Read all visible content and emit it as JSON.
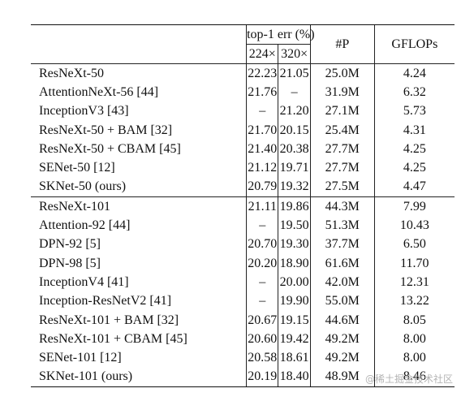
{
  "table": {
    "header": {
      "model": "",
      "err_group": "top-1 err (%)",
      "res_224": "224×",
      "res_320": "320×",
      "params": "#P",
      "gflops": "GFLOPs"
    },
    "rows": [
      {
        "model": "ResNeXt-50",
        "err224": "22.23",
        "err320": "21.05",
        "params": "25.0M",
        "gflops": "4.24"
      },
      {
        "model": "AttentionNeXt-56 [44]",
        "err224": "21.76",
        "err320": "–",
        "params": "31.9M",
        "gflops": "6.32"
      },
      {
        "model": "InceptionV3 [43]",
        "err224": "–",
        "err320": "21.20",
        "params": "27.1M",
        "gflops": "5.73"
      },
      {
        "model": "ResNeXt-50 + BAM [32]",
        "err224": "21.70",
        "err320": "20.15",
        "params": "25.4M",
        "gflops": "4.31"
      },
      {
        "model": "ResNeXt-50 + CBAM [45]",
        "err224": "21.40",
        "err320": "20.38",
        "params": "27.7M",
        "gflops": "4.25"
      },
      {
        "model": "SENet-50 [12]",
        "err224": "21.12",
        "err320": "19.71",
        "params": "27.7M",
        "gflops": "4.25"
      },
      {
        "model": "SKNet-50 (ours)",
        "err224": "20.79",
        "err320": "19.32",
        "params": "27.5M",
        "gflops": "4.47"
      },
      {
        "model": "ResNeXt-101",
        "err224": "21.11",
        "err320": "19.86",
        "params": "44.3M",
        "gflops": "7.99"
      },
      {
        "model": "Attention-92 [44]",
        "err224": "–",
        "err320": "19.50",
        "params": "51.3M",
        "gflops": "10.43"
      },
      {
        "model": "DPN-92 [5]",
        "err224": "20.70",
        "err320": "19.30",
        "params": "37.7M",
        "gflops": "6.50"
      },
      {
        "model": "DPN-98 [5]",
        "err224": "20.20",
        "err320": "18.90",
        "params": "61.6M",
        "gflops": "11.70"
      },
      {
        "model": "InceptionV4 [41]",
        "err224": "–",
        "err320": "20.00",
        "params": "42.0M",
        "gflops": "12.31"
      },
      {
        "model": "Inception-ResNetV2 [41]",
        "err224": "–",
        "err320": "19.90",
        "params": "55.0M",
        "gflops": "13.22"
      },
      {
        "model": "ResNeXt-101 + BAM [32]",
        "err224": "20.67",
        "err320": "19.15",
        "params": "44.6M",
        "gflops": "8.05"
      },
      {
        "model": "ResNeXt-101 + CBAM [45]",
        "err224": "20.60",
        "err320": "19.42",
        "params": "49.2M",
        "gflops": "8.00"
      },
      {
        "model": "SENet-101 [12]",
        "err224": "20.58",
        "err320": "18.61",
        "params": "49.2M",
        "gflops": "8.00"
      },
      {
        "model": "SKNet-101 (ours)",
        "err224": "20.19",
        "err320": "18.40",
        "params": "48.9M",
        "gflops": "8.46"
      }
    ]
  },
  "watermark": "@稀土掘金技术社区"
}
